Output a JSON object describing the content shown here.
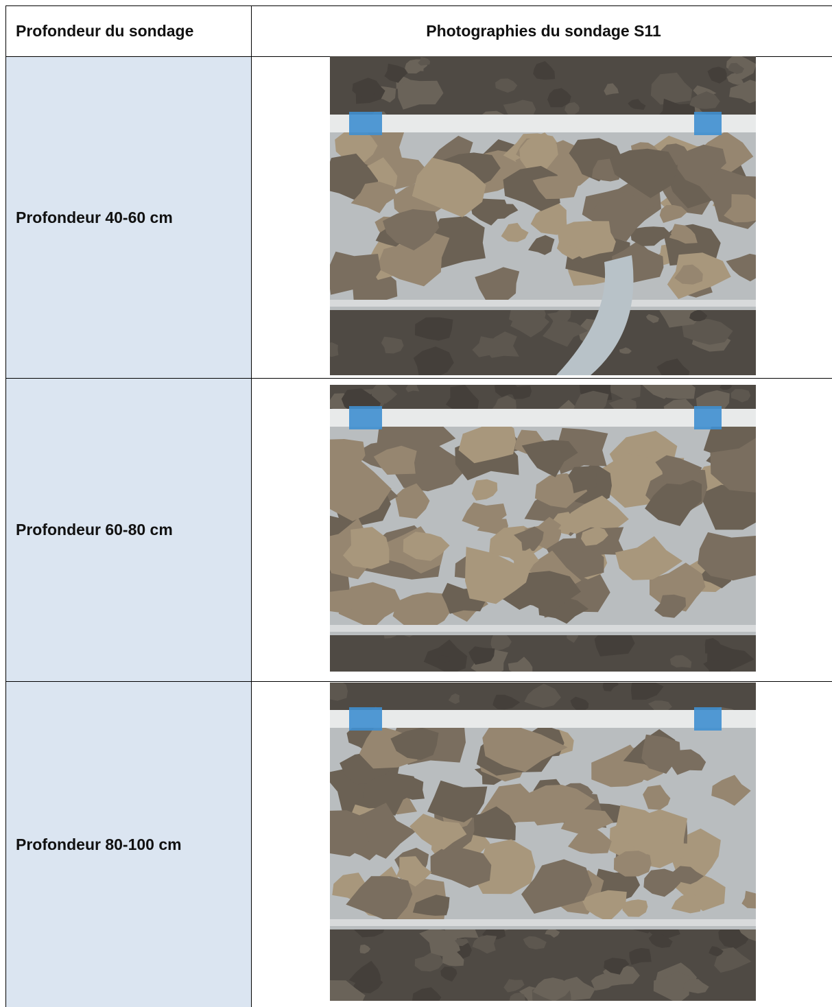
{
  "table": {
    "header": [
      "Profondeur du sondage",
      "Photographies du sondage S11"
    ],
    "rows": [
      [
        "Profondeur 40-60 cm"
      ],
      [
        "Profondeur 60-80 cm"
      ],
      [
        "Profondeur 80-100 cm"
      ]
    ]
  }
}
